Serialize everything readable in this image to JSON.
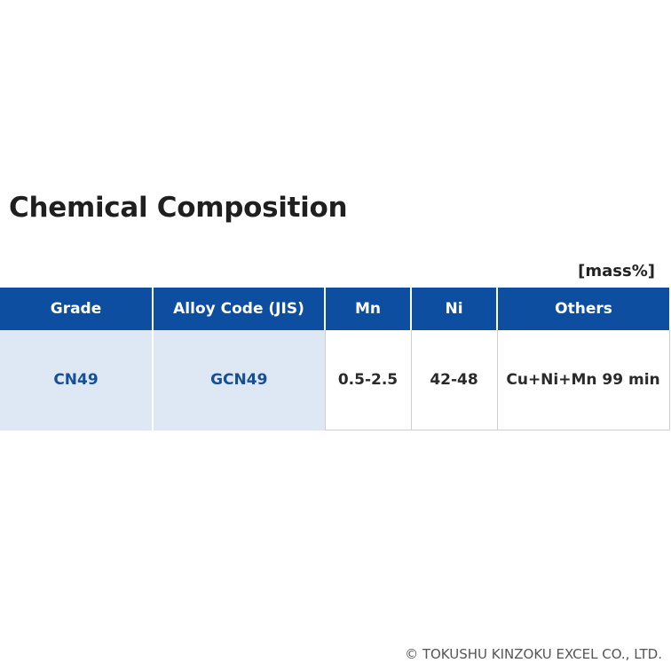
{
  "title": "Chemical Composition",
  "unit": "[mass%]",
  "table": {
    "headers": {
      "grade": "Grade",
      "alloy_code": "Alloy Code (JIS)",
      "mn": "Mn",
      "ni": "Ni",
      "others": "Others"
    },
    "rows": [
      {
        "grade": "CN49",
        "alloy_code": "GCN49",
        "mn": "0.5-2.5",
        "ni": "42-48",
        "others": "Cu+Ni+Mn 99 min"
      }
    ]
  },
  "copyright": "© TOKUSHU KINZOKU EXCEL CO., LTD.",
  "colors": {
    "header_bg": "#0d4ea1",
    "shaded_cell_bg": "#dde8f4",
    "shaded_cell_text": "#174f94"
  }
}
